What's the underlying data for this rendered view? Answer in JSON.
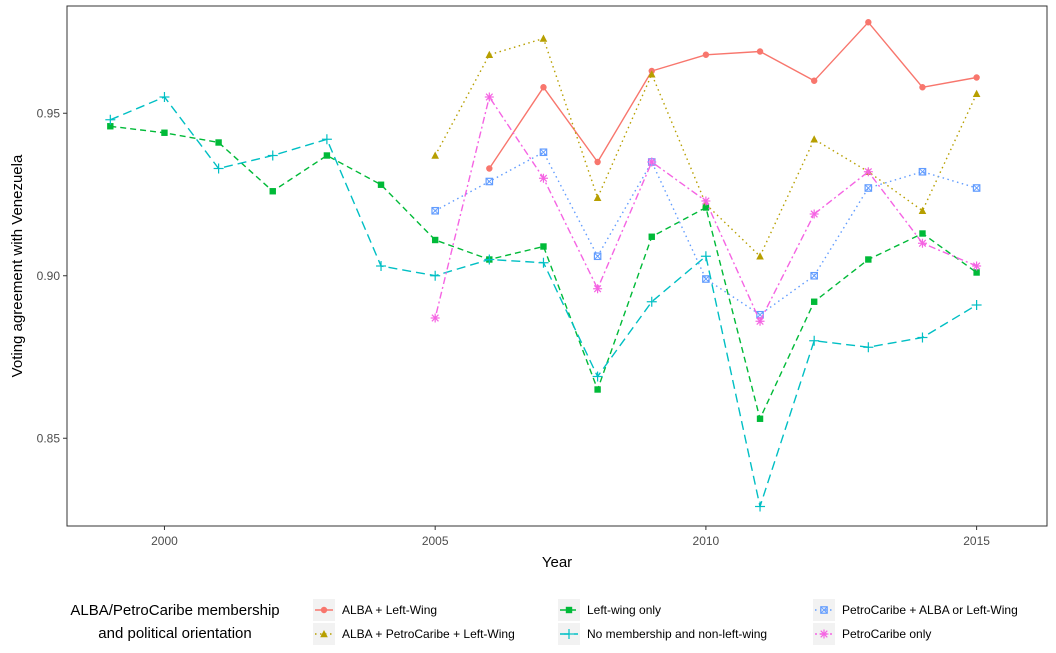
{
  "chart_data": {
    "type": "line",
    "title": "",
    "xlabel": "Year",
    "ylabel": "Voting agreement with Venezuela",
    "xlim": [
      1998.2,
      2016.3
    ],
    "ylim": [
      0.823,
      0.983
    ],
    "x_ticks": [
      2000,
      2005,
      2010,
      2015
    ],
    "y_ticks": [
      0.85,
      0.9,
      0.95
    ],
    "x_tick_labels": [
      "2000",
      "2005",
      "2010",
      "2015"
    ],
    "y_tick_labels": [
      "0.85",
      "0.90",
      "0.95"
    ],
    "grid": false,
    "legend": {
      "position": "bottom",
      "title_lines": [
        "ALBA/PetroCaribe membership",
        "and political orientation"
      ]
    },
    "series": [
      {
        "name": "ALBA + Left-Wing",
        "color": "#F8766D",
        "dash": "solid",
        "marker": "circle",
        "points": [
          [
            2006,
            0.933
          ],
          [
            2007,
            0.958
          ],
          [
            2008,
            0.935
          ],
          [
            2009,
            0.963
          ],
          [
            2010,
            0.968
          ],
          [
            2011,
            0.969
          ],
          [
            2012,
            0.96
          ],
          [
            2013,
            0.978
          ],
          [
            2014,
            0.958
          ],
          [
            2015,
            0.961
          ]
        ]
      },
      {
        "name": "ALBA + PetroCaribe + Left-Wing",
        "color": "#B79F00",
        "dash": "dotted",
        "marker": "triangle",
        "points": [
          [
            2005,
            0.937
          ],
          [
            2006,
            0.968
          ],
          [
            2007,
            0.973
          ],
          [
            2008,
            0.924
          ],
          [
            2009,
            0.962
          ],
          [
            2010,
            0.922
          ],
          [
            2011,
            0.906
          ],
          [
            2012,
            0.942
          ],
          [
            2013,
            0.932
          ],
          [
            2014,
            0.92
          ],
          [
            2015,
            0.956
          ]
        ]
      },
      {
        "name": "Left-wing only",
        "color": "#00BA38",
        "dash": "dashed",
        "marker": "square",
        "points": [
          [
            1999,
            0.946
          ],
          [
            2000,
            0.944
          ],
          [
            2001,
            0.941
          ],
          [
            2002,
            0.926
          ],
          [
            2003,
            0.937
          ],
          [
            2004,
            0.928
          ],
          [
            2005,
            0.911
          ],
          [
            2006,
            0.905
          ],
          [
            2007,
            0.909
          ],
          [
            2008,
            0.865
          ],
          [
            2009,
            0.912
          ],
          [
            2010,
            0.921
          ],
          [
            2011,
            0.856
          ],
          [
            2012,
            0.892
          ],
          [
            2013,
            0.905
          ],
          [
            2014,
            0.913
          ],
          [
            2015,
            0.901
          ]
        ]
      },
      {
        "name": "No membership and non-left-wing",
        "color": "#00BFC4",
        "dash": "longdash",
        "marker": "plus",
        "points": [
          [
            1999,
            0.948
          ],
          [
            2000,
            0.955
          ],
          [
            2001,
            0.933
          ],
          [
            2002,
            0.937
          ],
          [
            2003,
            0.942
          ],
          [
            2004,
            0.903
          ],
          [
            2005,
            0.9
          ],
          [
            2006,
            0.905
          ],
          [
            2007,
            0.904
          ],
          [
            2008,
            0.869
          ],
          [
            2009,
            0.892
          ],
          [
            2010,
            0.906
          ],
          [
            2011,
            0.829
          ],
          [
            2012,
            0.88
          ],
          [
            2013,
            0.878
          ],
          [
            2014,
            0.881
          ],
          [
            2015,
            0.891
          ]
        ]
      },
      {
        "name": "PetroCaribe + ALBA or Left-Wing",
        "color": "#619CFF",
        "dash": "dotted",
        "marker": "squarex",
        "points": [
          [
            2005,
            0.92
          ],
          [
            2006,
            0.929
          ],
          [
            2007,
            0.938
          ],
          [
            2008,
            0.906
          ],
          [
            2009,
            0.935
          ],
          [
            2010,
            0.899
          ],
          [
            2011,
            0.888
          ],
          [
            2012,
            0.9
          ],
          [
            2013,
            0.927
          ],
          [
            2014,
            0.932
          ],
          [
            2015,
            0.927
          ]
        ]
      },
      {
        "name": "PetroCaribe only",
        "color": "#F564E3",
        "dash": "dotdash",
        "marker": "asterisk",
        "points": [
          [
            2005,
            0.887
          ],
          [
            2006,
            0.955
          ],
          [
            2007,
            0.93
          ],
          [
            2008,
            0.896
          ],
          [
            2009,
            0.935
          ],
          [
            2010,
            0.923
          ],
          [
            2011,
            0.886
          ],
          [
            2012,
            0.919
          ],
          [
            2013,
            0.932
          ],
          [
            2014,
            0.91
          ],
          [
            2015,
            0.903
          ]
        ]
      }
    ]
  }
}
